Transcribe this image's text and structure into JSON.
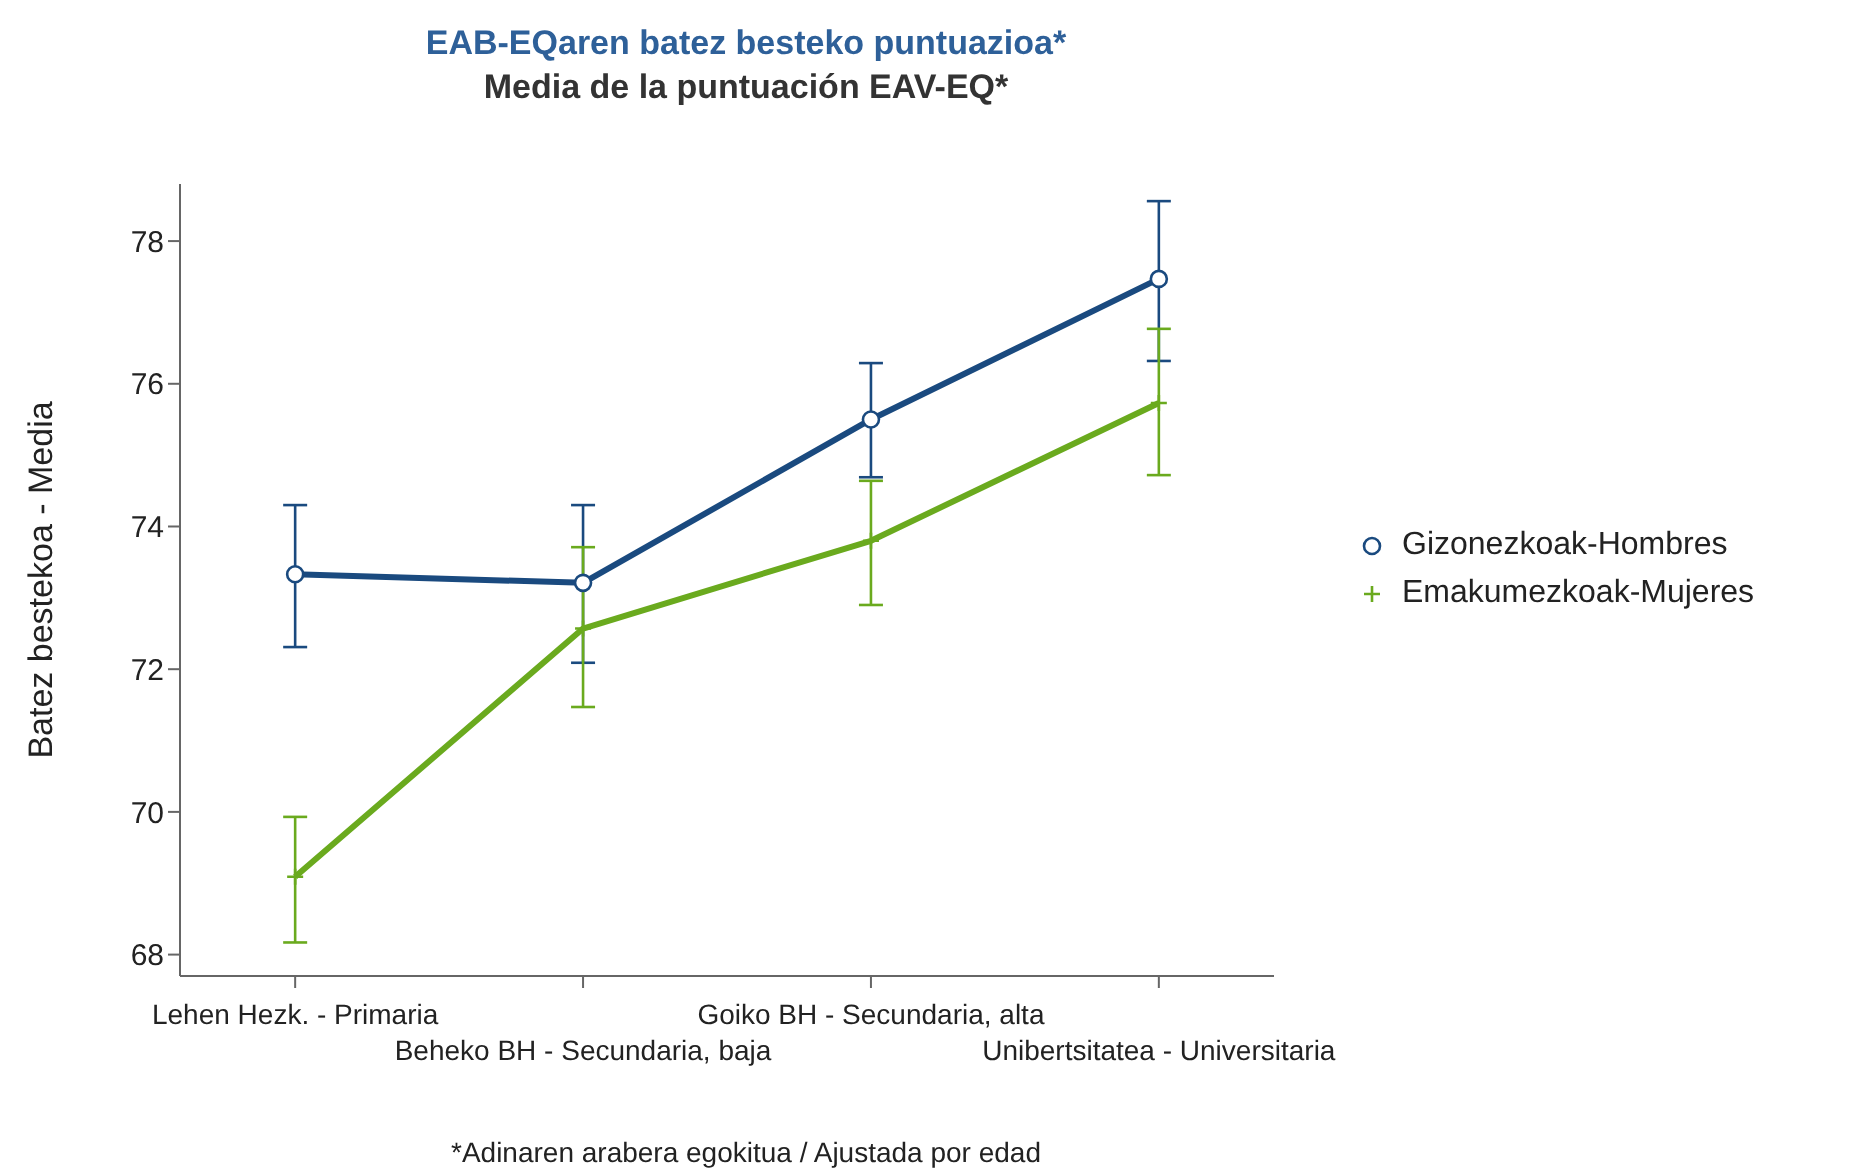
{
  "chart_data": {
    "type": "line",
    "title": "EAB-EQaren batez besteko puntuazioa*",
    "subtitle": "Media de la puntuación EAV-EQ*",
    "ylabel": "Batez bestekoa - Media",
    "categories": [
      "Lehen Hezk. - Primaria",
      "Beheko BH - Secundaria, baja",
      "Goiko BH - Secundaria, alta",
      "Unibertsitatea - Universitaria"
    ],
    "series": [
      {
        "name": "Gizonezkoak-Hombres",
        "color": "#1a4a7f",
        "marker": "circle",
        "values": [
          73.33,
          73.21,
          75.5,
          77.47
        ],
        "errors": [
          [
            72.31,
            74.3
          ],
          [
            72.09,
            74.3
          ],
          [
            74.69,
            76.29
          ],
          [
            76.32,
            78.56
          ]
        ]
      },
      {
        "name": "Emakumezkoak-Mujeres",
        "color": "#6aaa1e",
        "marker": "cross",
        "values": [
          69.09,
          72.57,
          73.8,
          75.73
        ],
        "errors": [
          [
            68.17,
            69.93
          ],
          [
            71.47,
            73.71
          ],
          [
            72.9,
            74.64
          ],
          [
            74.72,
            76.77
          ]
        ]
      }
    ],
    "ylim": [
      67.7,
      78.8
    ],
    "yticks": [
      68,
      70,
      72,
      74,
      76,
      78
    ],
    "legend": "right",
    "line_style": "solid",
    "annotations": [
      "*Adinaren arabera egokitua / Ajustada por edad"
    ]
  }
}
